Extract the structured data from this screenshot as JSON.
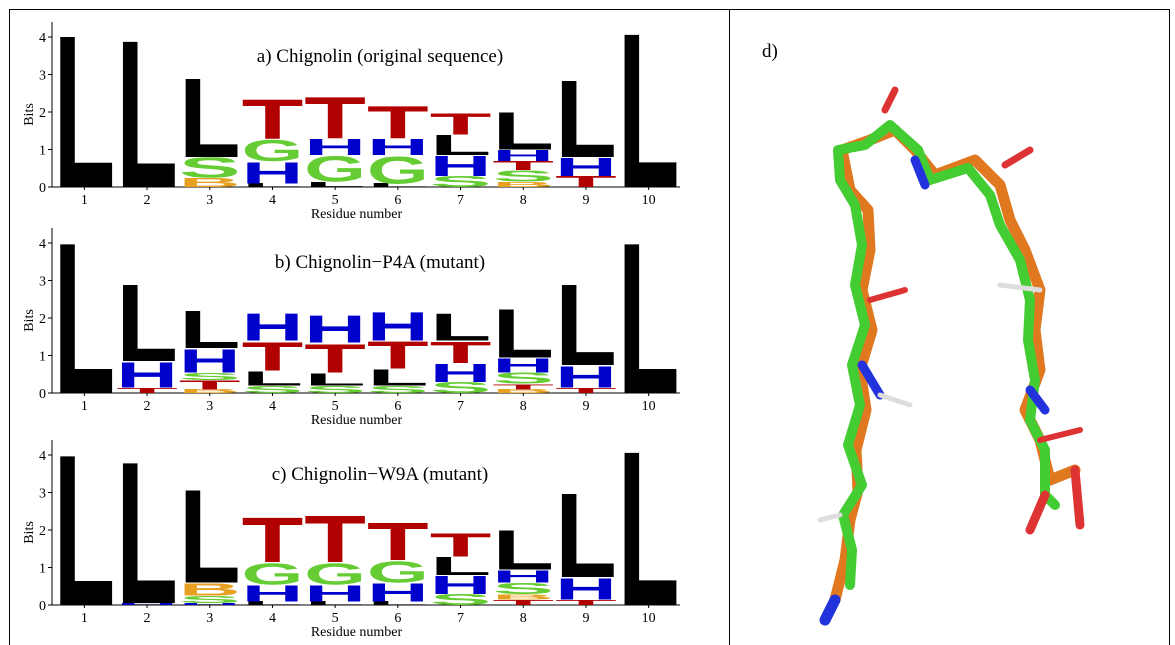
{
  "chart_data": [
    {
      "type": "logo",
      "title": "a) Chignolin (original sequence)",
      "xlabel": "Residue number",
      "ylabel": "Bits",
      "categories": [
        "1",
        "2",
        "3",
        "4",
        "5",
        "6",
        "7",
        "8",
        "9",
        "10"
      ],
      "ylim": [
        0,
        4.4
      ],
      "yticks": [
        0,
        1,
        2,
        3,
        4
      ],
      "letter_colors": {
        "L": "#000000",
        "T": "#b00000",
        "G": "#66cc33",
        "S": "#66cc33",
        "H": "#0000cc",
        "B": "#e8a020"
      },
      "stacks": [
        [
          {
            "letter": "L",
            "value": 4.24
          }
        ],
        [
          {
            "letter": "L",
            "value": 4.1
          }
        ],
        [
          {
            "letter": "B",
            "value": 0.25
          },
          {
            "letter": "S",
            "value": 0.55
          },
          {
            "letter": "L",
            "value": 2.2
          }
        ],
        [
          {
            "letter": "L",
            "value": 0.1
          },
          {
            "letter": "H",
            "value": 0.6
          },
          {
            "letter": "G",
            "value": 0.6
          },
          {
            "letter": "T",
            "value": 1.1
          }
        ],
        [
          {
            "letter": "L",
            "value": 0.15
          },
          {
            "letter": "G",
            "value": 0.7
          },
          {
            "letter": "H",
            "value": 0.45
          },
          {
            "letter": "T",
            "value": 1.15
          }
        ],
        [
          {
            "letter": "L",
            "value": 0.1
          },
          {
            "letter": "G",
            "value": 0.75
          },
          {
            "letter": "H",
            "value": 0.45
          },
          {
            "letter": "T",
            "value": 0.9
          }
        ],
        [
          {
            "letter": "S",
            "value": 0.3
          },
          {
            "letter": "H",
            "value": 0.55
          },
          {
            "letter": "L",
            "value": 0.55
          },
          {
            "letter": "T",
            "value": 0.6
          }
        ],
        [
          {
            "letter": "B",
            "value": 0.15
          },
          {
            "letter": "S",
            "value": 0.3
          },
          {
            "letter": "T",
            "value": 0.25
          },
          {
            "letter": "H",
            "value": 0.3
          },
          {
            "letter": "L",
            "value": 1.05
          }
        ],
        [
          {
            "letter": "T",
            "value": 0.3
          },
          {
            "letter": "H",
            "value": 0.5
          },
          {
            "letter": "L",
            "value": 2.15
          }
        ],
        [
          {
            "letter": "L",
            "value": 4.3
          }
        ]
      ]
    },
    {
      "type": "logo",
      "title": "b) Chignolin−P4A (mutant)",
      "xlabel": "Residue number",
      "ylabel": "Bits",
      "categories": [
        "1",
        "2",
        "3",
        "4",
        "5",
        "6",
        "7",
        "8",
        "9",
        "10"
      ],
      "ylim": [
        0,
        4.4
      ],
      "yticks": [
        0,
        1,
        2,
        3,
        4
      ],
      "letter_colors": {
        "L": "#000000",
        "T": "#b00000",
        "G": "#66cc33",
        "S": "#66cc33",
        "H": "#0000cc",
        "B": "#e8a020"
      },
      "stacks": [
        [
          {
            "letter": "L",
            "value": 4.2
          }
        ],
        [
          {
            "letter": "T",
            "value": 0.15
          },
          {
            "letter": "H",
            "value": 0.7
          },
          {
            "letter": "L",
            "value": 2.15
          }
        ],
        [
          {
            "letter": "B",
            "value": 0.1
          },
          {
            "letter": "T",
            "value": 0.25
          },
          {
            "letter": "S",
            "value": 0.2
          },
          {
            "letter": "H",
            "value": 0.65
          },
          {
            "letter": "L",
            "value": 1.05
          }
        ],
        [
          {
            "letter": "S",
            "value": 0.2
          },
          {
            "letter": "L",
            "value": 0.4
          },
          {
            "letter": "T",
            "value": 0.8
          },
          {
            "letter": "H",
            "value": 0.75
          }
        ],
        [
          {
            "letter": "S",
            "value": 0.2
          },
          {
            "letter": "L",
            "value": 0.35
          },
          {
            "letter": "T",
            "value": 0.8
          },
          {
            "letter": "H",
            "value": 0.75
          }
        ],
        [
          {
            "letter": "S",
            "value": 0.2
          },
          {
            "letter": "L",
            "value": 0.45
          },
          {
            "letter": "T",
            "value": 0.75
          },
          {
            "letter": "H",
            "value": 0.8
          }
        ],
        [
          {
            "letter": "S",
            "value": 0.3
          },
          {
            "letter": "H",
            "value": 0.5
          },
          {
            "letter": "T",
            "value": 0.6
          },
          {
            "letter": "L",
            "value": 0.75
          }
        ],
        [
          {
            "letter": "B",
            "value": 0.1
          },
          {
            "letter": "T",
            "value": 0.15
          },
          {
            "letter": "S",
            "value": 0.3
          },
          {
            "letter": "H",
            "value": 0.4
          },
          {
            "letter": "L",
            "value": 1.35
          }
        ],
        [
          {
            "letter": "T",
            "value": 0.15
          },
          {
            "letter": "H",
            "value": 0.6
          },
          {
            "letter": "L",
            "value": 2.25
          }
        ],
        [
          {
            "letter": "L",
            "value": 4.2
          }
        ]
      ]
    },
    {
      "type": "logo",
      "title": "c) Chignolin−W9A (mutant)",
      "xlabel": "Residue number",
      "ylabel": "Bits",
      "categories": [
        "1",
        "2",
        "3",
        "4",
        "5",
        "6",
        "7",
        "8",
        "9",
        "10"
      ],
      "ylim": [
        0,
        4.4
      ],
      "yticks": [
        0,
        1,
        2,
        3,
        4
      ],
      "letter_colors": {
        "L": "#000000",
        "T": "#b00000",
        "G": "#66cc33",
        "S": "#66cc33",
        "H": "#0000cc",
        "B": "#e8a020"
      },
      "stacks": [
        [
          {
            "letter": "L",
            "value": 4.2
          }
        ],
        [
          {
            "letter": "H",
            "value": 0.05
          },
          {
            "letter": "L",
            "value": 3.95
          }
        ],
        [
          {
            "letter": "H",
            "value": 0.05
          },
          {
            "letter": "S",
            "value": 0.2
          },
          {
            "letter": "B",
            "value": 0.35
          },
          {
            "letter": "L",
            "value": 2.6
          }
        ],
        [
          {
            "letter": "L",
            "value": 0.1
          },
          {
            "letter": "H",
            "value": 0.45
          },
          {
            "letter": "G",
            "value": 0.6
          },
          {
            "letter": "T",
            "value": 1.25
          }
        ],
        [
          {
            "letter": "L",
            "value": 0.1
          },
          {
            "letter": "H",
            "value": 0.45
          },
          {
            "letter": "G",
            "value": 0.6
          },
          {
            "letter": "T",
            "value": 1.3
          }
        ],
        [
          {
            "letter": "L",
            "value": 0.1
          },
          {
            "letter": "H",
            "value": 0.5
          },
          {
            "letter": "G",
            "value": 0.6
          },
          {
            "letter": "T",
            "value": 1.05
          }
        ],
        [
          {
            "letter": "S",
            "value": 0.3
          },
          {
            "letter": "H",
            "value": 0.5
          },
          {
            "letter": "L",
            "value": 0.5
          },
          {
            "letter": "T",
            "value": 0.65
          }
        ],
        [
          {
            "letter": "T",
            "value": 0.15
          },
          {
            "letter": "B",
            "value": 0.15
          },
          {
            "letter": "S",
            "value": 0.3
          },
          {
            "letter": "H",
            "value": 0.35
          },
          {
            "letter": "L",
            "value": 1.1
          }
        ],
        [
          {
            "letter": "T",
            "value": 0.15
          },
          {
            "letter": "H",
            "value": 0.6
          },
          {
            "letter": "L",
            "value": 2.35
          }
        ],
        [
          {
            "letter": "L",
            "value": 4.3
          }
        ]
      ]
    }
  ],
  "panel_d": {
    "label": "d)"
  }
}
